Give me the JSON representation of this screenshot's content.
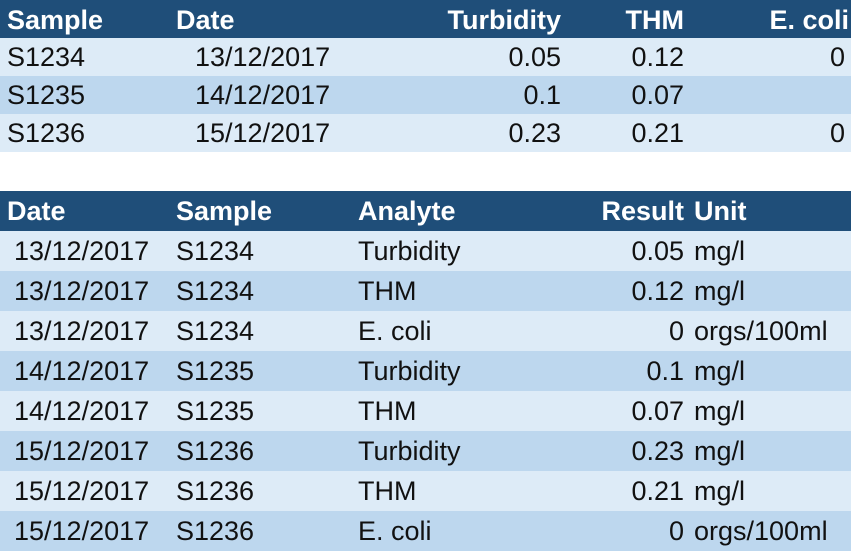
{
  "wide_table": {
    "headers": {
      "sample": "Sample",
      "date": "Date",
      "turbidity": "Turbidity",
      "thm": "THM",
      "ecoli": "E. coli"
    },
    "rows": [
      {
        "sample": "S1234",
        "date": "13/12/2017",
        "turbidity": "0.05",
        "thm": "0.12",
        "ecoli": "0"
      },
      {
        "sample": "S1235",
        "date": "14/12/2017",
        "turbidity": "0.1",
        "thm": "0.07",
        "ecoli": ""
      },
      {
        "sample": "S1236",
        "date": "15/12/2017",
        "turbidity": "0.23",
        "thm": "0.21",
        "ecoli": "0"
      }
    ]
  },
  "long_table": {
    "headers": {
      "date": "Date",
      "sample": "Sample",
      "analyte": "Analyte",
      "result": "Result",
      "unit": "Unit"
    },
    "rows": [
      {
        "date": "13/12/2017",
        "sample": "S1234",
        "analyte": "Turbidity",
        "result": "0.05",
        "unit": "mg/l"
      },
      {
        "date": "13/12/2017",
        "sample": "S1234",
        "analyte": "THM",
        "result": "0.12",
        "unit": "mg/l"
      },
      {
        "date": "13/12/2017",
        "sample": "S1234",
        "analyte": "E. coli",
        "result": "0",
        "unit": "orgs/100ml"
      },
      {
        "date": "14/12/2017",
        "sample": "S1235",
        "analyte": "Turbidity",
        "result": "0.1",
        "unit": "mg/l"
      },
      {
        "date": "14/12/2017",
        "sample": "S1235",
        "analyte": "THM",
        "result": "0.07",
        "unit": "mg/l"
      },
      {
        "date": "15/12/2017",
        "sample": "S1236",
        "analyte": "Turbidity",
        "result": "0.23",
        "unit": "mg/l"
      },
      {
        "date": "15/12/2017",
        "sample": "S1236",
        "analyte": "THM",
        "result": "0.21",
        "unit": "mg/l"
      },
      {
        "date": "15/12/2017",
        "sample": "S1236",
        "analyte": "E. coli",
        "result": "0",
        "unit": "orgs/100ml"
      }
    ]
  },
  "colors": {
    "header_bg": "#1f4e79",
    "band_light": "#ddebf7",
    "band_dark": "#bdd7ee"
  }
}
